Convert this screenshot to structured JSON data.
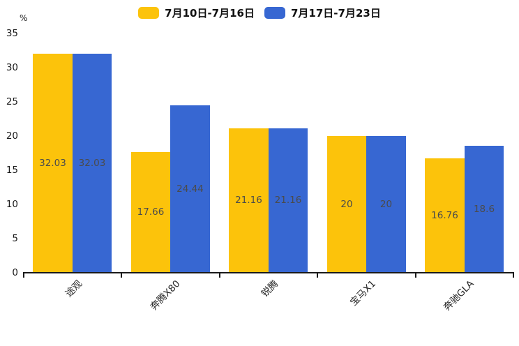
{
  "legend": [
    {
      "label": "7月10日-7月16日",
      "color": "#FCC30B"
    },
    {
      "label": "7月17日-7月23日",
      "color": "#3767D2"
    }
  ],
  "chart_data": {
    "type": "bar",
    "title": "",
    "categories": [
      "途观",
      "奔腾X80",
      "锐腾",
      "宝马X1",
      "奔驰GLA"
    ],
    "series": [
      {
        "name": "7月10日-7月16日",
        "color": "#FCC30B",
        "values": [
          32.03,
          17.66,
          21.16,
          20,
          16.76
        ]
      },
      {
        "name": "7月17日-7月23日",
        "color": "#3767D2",
        "values": [
          32.03,
          24.44,
          21.16,
          20,
          18.6
        ]
      }
    ],
    "value_labels": [
      [
        "32.03",
        "17.66",
        "21.16",
        "20",
        "16.76"
      ],
      [
        "32.03",
        "24.44",
        "21.16",
        "20",
        "18.6"
      ]
    ],
    "xlabel": "",
    "ylabel": "%",
    "ylim": [
      0,
      35
    ],
    "yticks": [
      0,
      5,
      10,
      15,
      20,
      25,
      30,
      35
    ],
    "grid": false,
    "legend_position": "top-center",
    "value_label_position": "inside-center"
  },
  "colors": {
    "axis": "#1a1a1a",
    "tick_label": "#1a1a1a",
    "value_label": "#4b4b4b",
    "background": "#ffffff"
  }
}
